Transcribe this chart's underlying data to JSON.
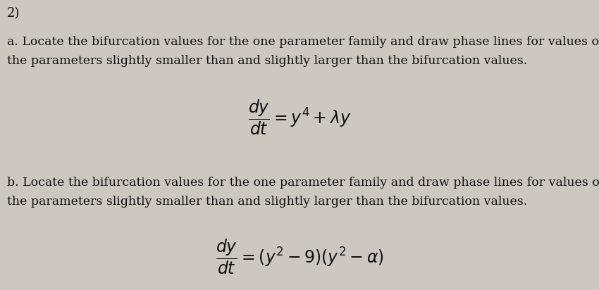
{
  "background_color": "#ccc8c0",
  "number_label": "2)",
  "part_a_text_line1": "a. Locate the bifurcation values for the one parameter family and draw phase lines for values of",
  "part_a_text_line2": "the parameters slightly smaller than and slightly larger than the bifurcation values.",
  "part_a_formula": "$\\dfrac{dy}{dt} = y^4 + \\lambda y$",
  "part_b_text_line1": "b. Locate the bifurcation values for the one parameter family and draw phase lines for values of",
  "part_b_text_line2": "the parameters slightly smaller than and slightly larger than the bifurcation values.",
  "part_b_formula": "$\\dfrac{dy}{dt} = (y^2 - 9)(y^2 - \\alpha)$",
  "text_color": "#111111",
  "font_size_text": 12.5,
  "font_size_number": 13.0,
  "font_size_formula": 17.0,
  "fig_width": 8.5,
  "fig_height": 4.12,
  "dpi": 100
}
